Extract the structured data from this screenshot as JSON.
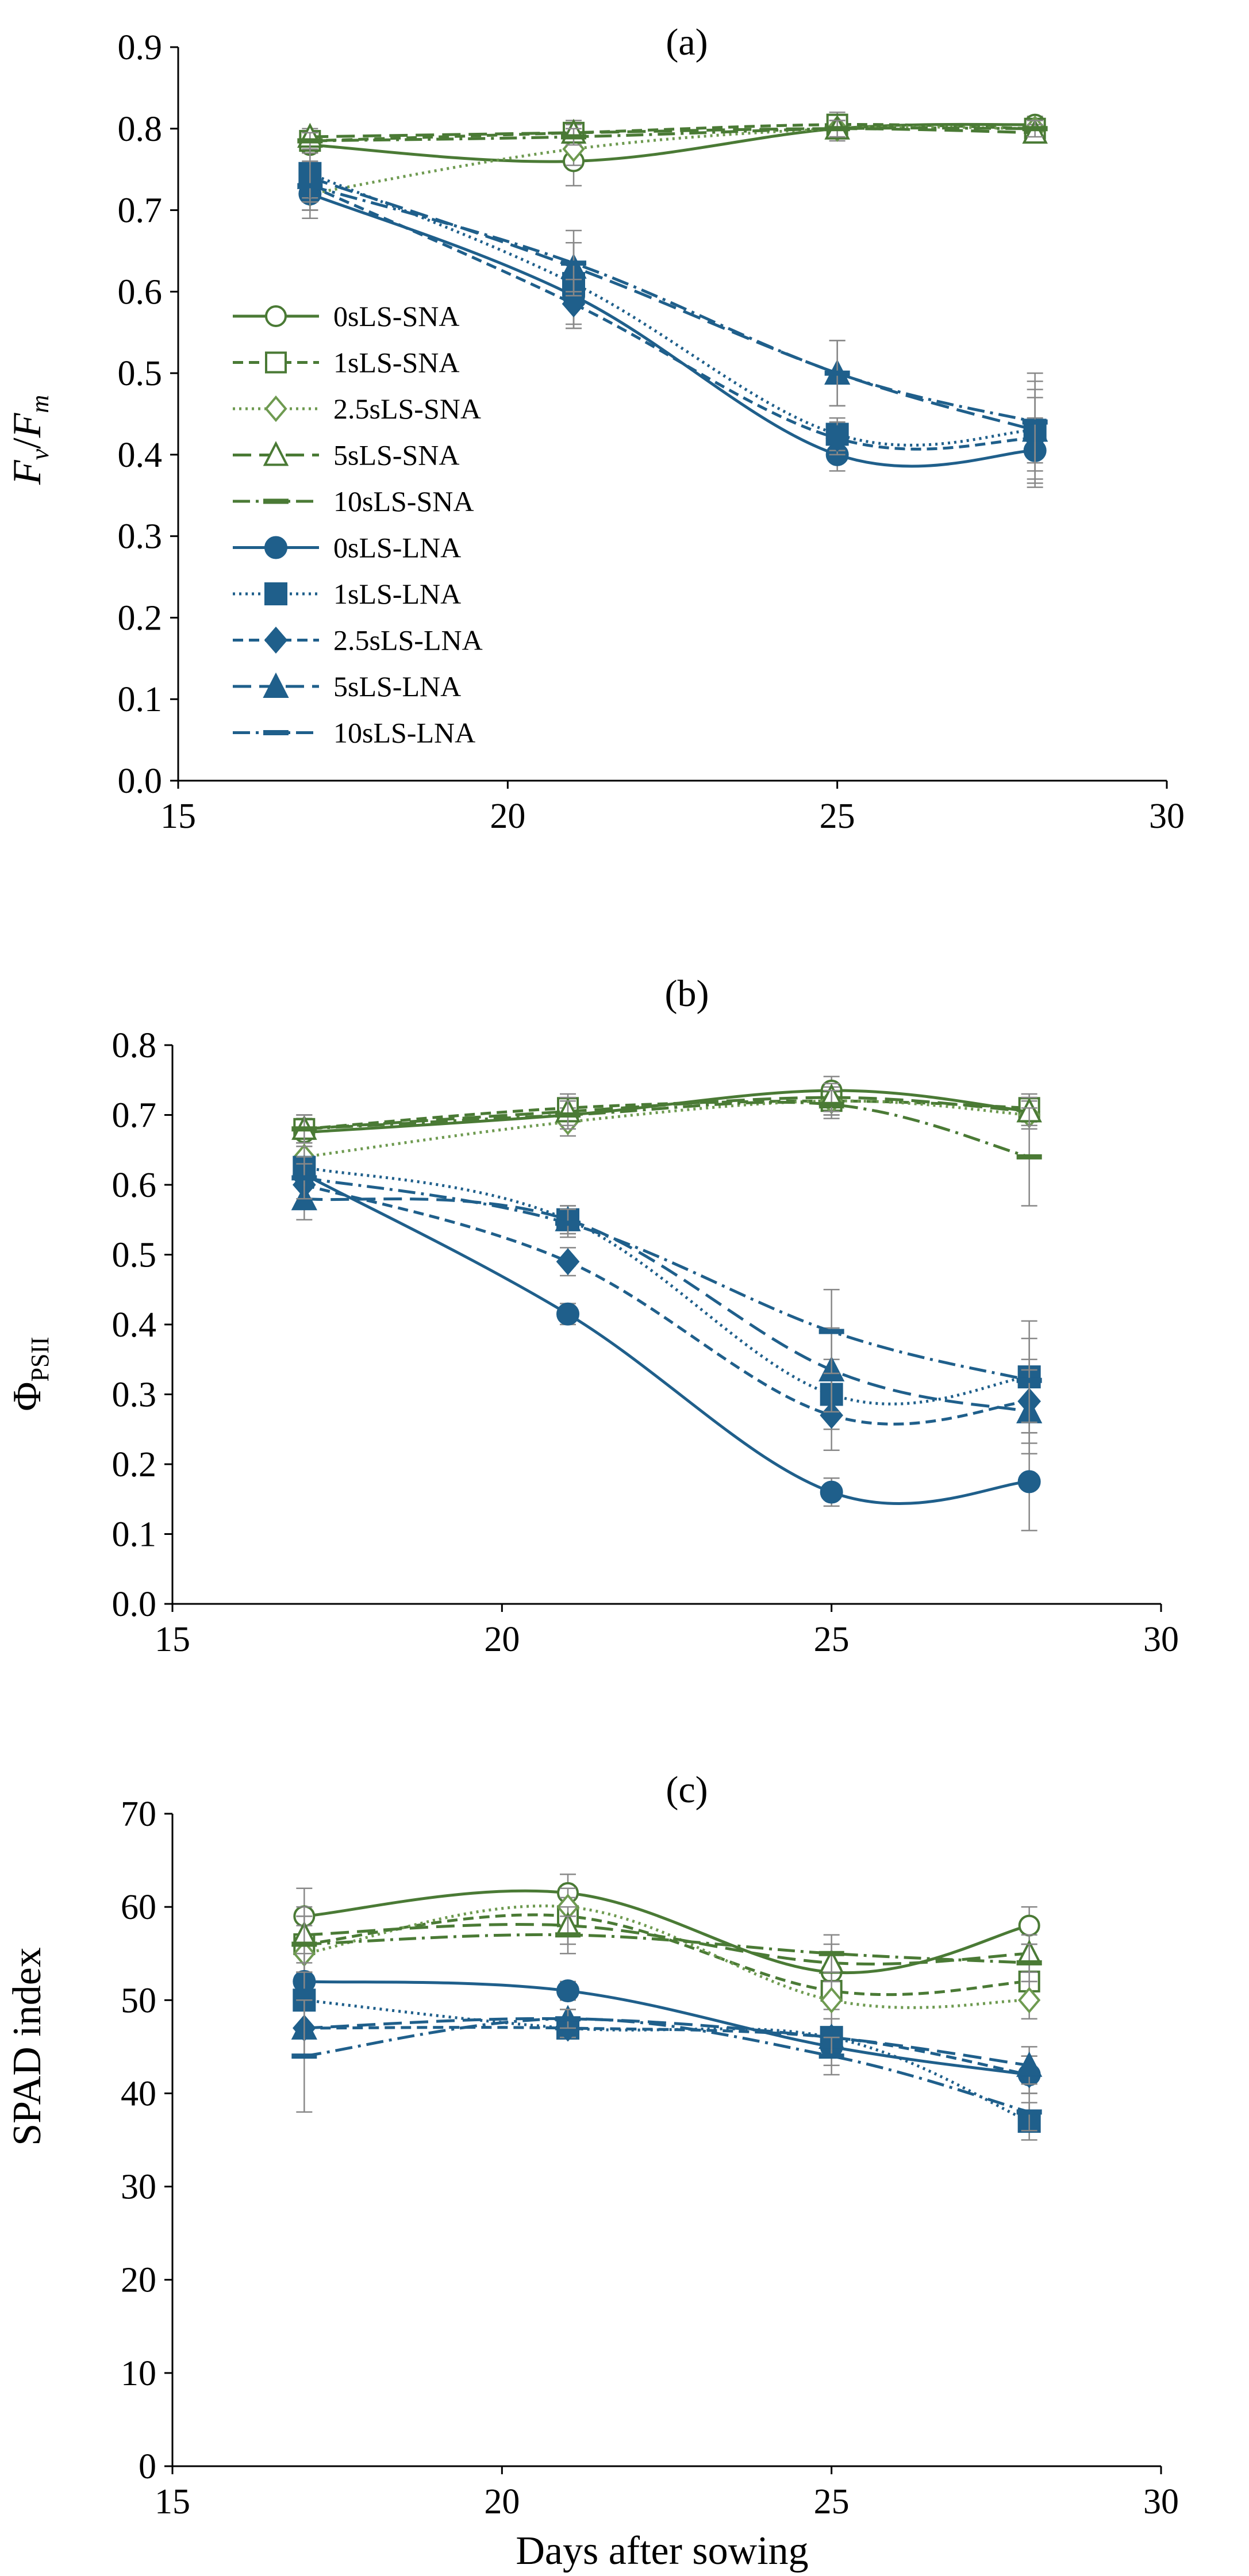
{
  "chart_data": [
    {
      "type": "line",
      "panel": "a",
      "title": "(a)",
      "ylabel_main": "F",
      "ylabel_sub1": "v",
      "ylabel_sep": "/",
      "ylabel_sub2": "m",
      "xlabel": "",
      "xlim": [
        15,
        30
      ],
      "xticks": [
        "15",
        "20",
        "25",
        "30"
      ],
      "ylim": [
        0,
        0.9
      ],
      "yticks": [
        "0.0",
        "0.1",
        "0.2",
        "0.3",
        "0.4",
        "0.5",
        "0.6",
        "0.7",
        "0.8",
        "0.9"
      ],
      "legend_position": "center-left",
      "x": [
        17,
        21,
        25,
        28
      ],
      "series": [
        {
          "name": "0sLS-SNA",
          "values": [
            0.78,
            0.76,
            0.8,
            0.805
          ],
          "errors": [
            0.01,
            0.03,
            0.015,
            0.01
          ]
        },
        {
          "name": "1sLS-SNA",
          "values": [
            0.785,
            0.795,
            0.805,
            0.8
          ],
          "errors": [
            0.01,
            0.015,
            0.015,
            0.01
          ]
        },
        {
          "name": "2.5sLS-SNA",
          "values": [
            0.72,
            0.775,
            0.8,
            0.8
          ],
          "errors": [
            0.02,
            0.02,
            0.01,
            0.01
          ]
        },
        {
          "name": "5sLS-SNA",
          "values": [
            0.79,
            0.795,
            0.8,
            0.795
          ],
          "errors": [
            0.01,
            0.01,
            0.01,
            0.01
          ]
        },
        {
          "name": "10sLS-SNA",
          "values": [
            0.785,
            0.79,
            0.8,
            0.8
          ],
          "errors": [
            0.01,
            0.01,
            0.01,
            0.01
          ]
        },
        {
          "name": "0sLS-LNA",
          "values": [
            0.72,
            0.595,
            0.4,
            0.405
          ],
          "errors": [
            0.03,
            0.04,
            0.02,
            0.04
          ]
        },
        {
          "name": "1sLS-LNA",
          "values": [
            0.745,
            0.61,
            0.425,
            0.43
          ],
          "errors": [
            0.03,
            0.05,
            0.02,
            0.07
          ]
        },
        {
          "name": "2.5sLS-LNA",
          "values": [
            0.73,
            0.585,
            0.42,
            0.42
          ],
          "errors": [
            0.03,
            0.03,
            0.02,
            0.05
          ]
        },
        {
          "name": "5sLS-LNA",
          "values": [
            0.74,
            0.63,
            0.5,
            0.43
          ],
          "errors": [
            0.03,
            0.03,
            0.04,
            0.05
          ]
        },
        {
          "name": "10sLS-LNA",
          "values": [
            0.73,
            0.635,
            0.5,
            0.44
          ],
          "errors": [
            0.03,
            0.04,
            0.04,
            0.05
          ]
        }
      ]
    },
    {
      "type": "line",
      "panel": "b",
      "title": "(b)",
      "ylabel_main": "Φ",
      "ylabel_sub1": "PSII",
      "xlabel": "",
      "xlim": [
        15,
        30
      ],
      "xticks": [
        "15",
        "20",
        "25",
        "30"
      ],
      "ylim": [
        0,
        0.8
      ],
      "yticks": [
        "0.0",
        "0.1",
        "0.2",
        "0.3",
        "0.4",
        "0.5",
        "0.6",
        "0.7",
        "0.8"
      ],
      "x": [
        17,
        21,
        25,
        28
      ],
      "series": [
        {
          "name": "0sLS-SNA",
          "values": [
            0.675,
            0.7,
            0.735,
            0.705
          ],
          "errors": [
            0.02,
            0.02,
            0.02,
            0.02
          ]
        },
        {
          "name": "1sLS-SNA",
          "values": [
            0.68,
            0.71,
            0.72,
            0.71
          ],
          "errors": [
            0.02,
            0.02,
            0.02,
            0.02
          ]
        },
        {
          "name": "2.5sLS-SNA",
          "values": [
            0.64,
            0.69,
            0.72,
            0.7
          ],
          "errors": [
            0.02,
            0.02,
            0.02,
            0.02
          ]
        },
        {
          "name": "5sLS-SNA",
          "values": [
            0.68,
            0.705,
            0.725,
            0.705
          ],
          "errors": [
            0.02,
            0.02,
            0.02,
            0.02
          ]
        },
        {
          "name": "10sLS-SNA",
          "values": [
            0.68,
            0.7,
            0.715,
            0.64
          ],
          "errors": [
            0.02,
            0.02,
            0.02,
            0.07
          ]
        },
        {
          "name": "0sLS-LNA",
          "values": [
            0.615,
            0.415,
            0.16,
            0.175
          ],
          "errors": [
            0.02,
            0.015,
            0.02,
            0.07
          ]
        },
        {
          "name": "1sLS-LNA",
          "values": [
            0.625,
            0.55,
            0.3,
            0.325
          ],
          "errors": [
            0.03,
            0.02,
            0.05,
            0.08
          ]
        },
        {
          "name": "2.5sLS-LNA",
          "values": [
            0.6,
            0.49,
            0.27,
            0.29
          ],
          "errors": [
            0.03,
            0.02,
            0.05,
            0.06
          ]
        },
        {
          "name": "5sLS-LNA",
          "values": [
            0.58,
            0.55,
            0.335,
            0.275
          ],
          "errors": [
            0.03,
            0.02,
            0.06,
            0.06
          ]
        },
        {
          "name": "10sLS-LNA",
          "values": [
            0.61,
            0.545,
            0.39,
            0.32
          ],
          "errors": [
            0.03,
            0.02,
            0.06,
            0.06
          ]
        }
      ]
    },
    {
      "type": "line",
      "panel": "c",
      "title": "(c)",
      "ylabel_main": "SPAD index",
      "xlabel": "Days after sowing",
      "xlim": [
        15,
        30
      ],
      "xticks": [
        "15",
        "20",
        "25",
        "30"
      ],
      "ylim": [
        0,
        70
      ],
      "yticks": [
        "0",
        "10",
        "20",
        "30",
        "40",
        "50",
        "60",
        "70"
      ],
      "x": [
        17,
        21,
        25,
        28
      ],
      "series": [
        {
          "name": "0sLS-SNA",
          "values": [
            59,
            61.5,
            53,
            58
          ],
          "errors": [
            3,
            2,
            2,
            2
          ]
        },
        {
          "name": "1sLS-SNA",
          "values": [
            56,
            59,
            51,
            52
          ],
          "errors": [
            3,
            2,
            2,
            2
          ]
        },
        {
          "name": "2.5sLS-SNA",
          "values": [
            55,
            60,
            50,
            50
          ],
          "errors": [
            3,
            2,
            2,
            2
          ]
        },
        {
          "name": "5sLS-SNA",
          "values": [
            57,
            58,
            54,
            55
          ],
          "errors": [
            3,
            2,
            2,
            2
          ]
        },
        {
          "name": "10sLS-SNA",
          "values": [
            56,
            57,
            55,
            54
          ],
          "errors": [
            3,
            2,
            2,
            2
          ]
        },
        {
          "name": "0sLS-LNA",
          "values": [
            52,
            51,
            45,
            42
          ],
          "errors": [
            3,
            1,
            2,
            2
          ]
        },
        {
          "name": "1sLS-LNA",
          "values": [
            50,
            47,
            46,
            37
          ],
          "errors": [
            3,
            1,
            2,
            2
          ]
        },
        {
          "name": "2.5sLS-LNA",
          "values": [
            47,
            47,
            46,
            42
          ],
          "errors": [
            3,
            1,
            2,
            2
          ]
        },
        {
          "name": "5sLS-LNA",
          "values": [
            47,
            48,
            46,
            43
          ],
          "errors": [
            3,
            1,
            2,
            2
          ]
        },
        {
          "name": "10sLS-LNA",
          "values": [
            44,
            48,
            44,
            38
          ],
          "errors": [
            6,
            1,
            2,
            2
          ]
        }
      ]
    }
  ],
  "series_styles": {
    "0sLS-SNA": {
      "color": "#4a7a35",
      "dash": "none",
      "marker": "circle-open"
    },
    "1sLS-SNA": {
      "color": "#4a7a35",
      "dash": "18 10",
      "marker": "square-open"
    },
    "2.5sLS-SNA": {
      "color": "#6e9a50",
      "dash": "4 7",
      "marker": "diamond-open"
    },
    "5sLS-SNA": {
      "color": "#4a7a35",
      "dash": "32 14",
      "marker": "triangle-open"
    },
    "10sLS-SNA": {
      "color": "#4a7a35",
      "dash": "30 10 5 10",
      "marker": "dash"
    },
    "0sLS-LNA": {
      "color": "#1f5f8b",
      "dash": "none",
      "marker": "circle"
    },
    "1sLS-LNA": {
      "color": "#1f5f8b",
      "dash": "4 7",
      "marker": "square"
    },
    "2.5sLS-LNA": {
      "color": "#1f5f8b",
      "dash": "18 10",
      "marker": "diamond"
    },
    "5sLS-LNA": {
      "color": "#1f5f8b",
      "dash": "32 14",
      "marker": "triangle"
    },
    "10sLS-LNA": {
      "color": "#1f5f8b",
      "dash": "30 10 5 10",
      "marker": "dash"
    }
  }
}
